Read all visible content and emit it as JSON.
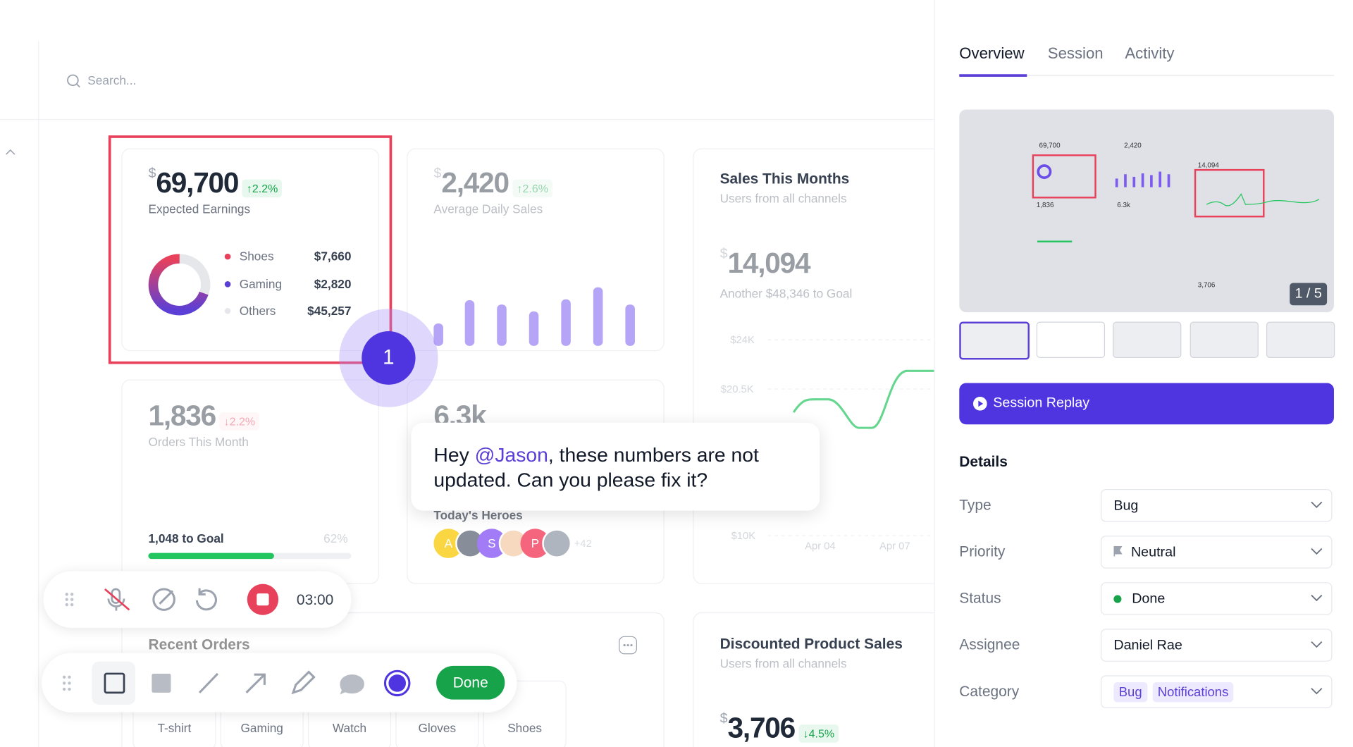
{
  "search": {
    "placeholder": "Search..."
  },
  "cards": {
    "earnings": {
      "currency": "$",
      "value": "69,700",
      "change": "2.2%",
      "label": "Expected Earnings",
      "legend": [
        {
          "name": "Shoes",
          "value": "$7,660"
        },
        {
          "name": "Gaming",
          "value": "$2,820"
        },
        {
          "name": "Others",
          "value": "$45,257"
        }
      ]
    },
    "daily": {
      "currency": "$",
      "value": "2,420",
      "change": "2.6%",
      "label": "Average Daily Sales"
    },
    "sales": {
      "title": "Sales This Months",
      "subtitle": "Users from all channels",
      "currency": "$",
      "value": "14,094",
      "note": "Another $48,346 to Goal",
      "yticks": [
        "$24K",
        "$20.5K",
        "$10K"
      ],
      "xticks": [
        "Apr 04",
        "Apr 07"
      ]
    },
    "orders": {
      "value": "1,836",
      "change": "2.2%",
      "label": "Orders This Month",
      "goal": "1,048 to Goal",
      "percent": "62%"
    },
    "heroes": {
      "value": "6.3k",
      "title": "Today's Heroes",
      "avatars": [
        "A",
        "S",
        "P"
      ],
      "more": "+42"
    },
    "recent": {
      "title": "Recent Orders",
      "tabs": [
        "T-shirt",
        "Gaming",
        "Watch",
        "Gloves",
        "Shoes"
      ]
    },
    "discounted": {
      "title": "Discounted Product Sales",
      "subtitle": "Users from all channels",
      "currency": "$",
      "value": "3,706",
      "change": "4.5%"
    }
  },
  "annotation": {
    "number": "1",
    "comment": {
      "before": "Hey ",
      "mention": "@Jason",
      "after": ", these numbers are not updated. Can you please fix it?"
    }
  },
  "recorder": {
    "time": "03:00"
  },
  "toolbar": {
    "done": "Done"
  },
  "panel": {
    "tabs": [
      "Overview",
      "Session",
      "Activity"
    ],
    "counter": "1 / 5",
    "replay": "Session Replay",
    "details": "Details",
    "fields": [
      {
        "label": "Type",
        "value": "Bug"
      },
      {
        "label": "Priority",
        "value": "Neutral"
      },
      {
        "label": "Status",
        "value": "Done"
      },
      {
        "label": "Assignee",
        "value": "Daniel Rae"
      },
      {
        "label": "Category",
        "tags": [
          "Bug",
          "Notifications"
        ]
      }
    ]
  }
}
